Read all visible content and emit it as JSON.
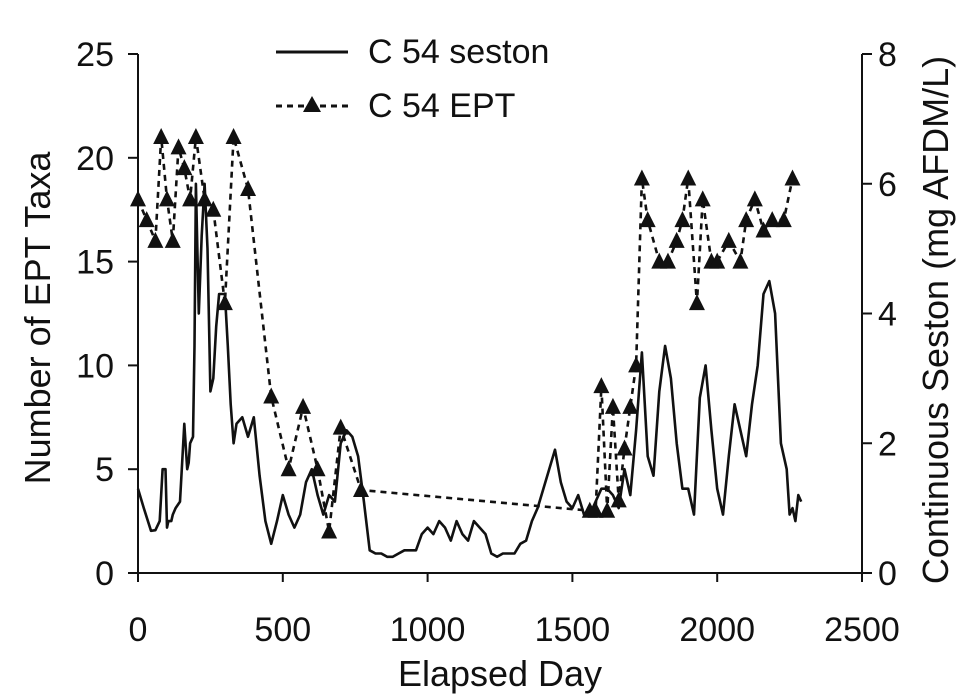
{
  "chart_data": {
    "type": "line",
    "xlabel": "Elapsed Day",
    "ylabel_left": "Number of EPT Taxa",
    "ylabel_right": "Continuous Seston (mg AFDM/L)",
    "xlim": [
      0,
      2500
    ],
    "ylim_left": [
      0,
      25
    ],
    "ylim_right": [
      0,
      8
    ],
    "x_ticks": [
      0,
      500,
      1000,
      1500,
      2000,
      2500
    ],
    "y_ticks_left": [
      0,
      5,
      10,
      15,
      20,
      25
    ],
    "y_ticks_right": [
      0,
      2,
      4,
      6,
      8
    ],
    "grid": false,
    "legend_position": "top-center",
    "series": [
      {
        "name": "C 54 seston",
        "axis": "right",
        "style": "solid",
        "marker": "none",
        "color": "#111111",
        "x": [
          0,
          20,
          45,
          60,
          75,
          85,
          95,
          100,
          105,
          115,
          120,
          130,
          145,
          160,
          170,
          175,
          180,
          190,
          195,
          200,
          210,
          220,
          230,
          240,
          250,
          260,
          270,
          280,
          300,
          310,
          320,
          330,
          340,
          360,
          380,
          400,
          420,
          440,
          460,
          480,
          500,
          520,
          540,
          560,
          580,
          600,
          620,
          640,
          660,
          680,
          700,
          720,
          740,
          760,
          780,
          800,
          820,
          840,
          860,
          880,
          900,
          920,
          940,
          960,
          980,
          1000,
          1020,
          1040,
          1060,
          1080,
          1100,
          1120,
          1140,
          1160,
          1180,
          1200,
          1220,
          1240,
          1260,
          1280,
          1300,
          1320,
          1340,
          1360,
          1380,
          1400,
          1420,
          1440,
          1460,
          1480,
          1500,
          1520,
          1540,
          1560,
          1580,
          1600,
          1620,
          1640,
          1660,
          1680,
          1700,
          1720,
          1740,
          1760,
          1780,
          1800,
          1820,
          1840,
          1860,
          1880,
          1900,
          1920,
          1940,
          1960,
          1980,
          2000,
          2020,
          2040,
          2060,
          2080,
          2100,
          2120,
          2140,
          2160,
          2180,
          2200,
          2220,
          2240,
          2250,
          2260,
          2270,
          2280,
          2290
        ],
        "y": [
          1.3,
          1.0,
          0.65,
          0.66,
          0.8,
          1.6,
          1.6,
          0.7,
          0.8,
          0.8,
          0.9,
          1.0,
          1.1,
          2.3,
          1.6,
          1.7,
          2.0,
          2.1,
          3.5,
          6.0,
          4.0,
          5.2,
          6.0,
          5.0,
          2.8,
          3.0,
          3.8,
          4.3,
          4.3,
          3.5,
          2.6,
          2.0,
          2.3,
          2.4,
          2.1,
          2.4,
          1.5,
          0.8,
          0.45,
          0.8,
          1.2,
          0.9,
          0.7,
          0.9,
          1.4,
          1.6,
          1.2,
          0.9,
          1.2,
          1.1,
          2.0,
          2.2,
          2.1,
          1.8,
          1.1,
          0.35,
          0.3,
          0.3,
          0.25,
          0.25,
          0.3,
          0.35,
          0.35,
          0.35,
          0.6,
          0.7,
          0.6,
          0.8,
          0.7,
          0.5,
          0.8,
          0.6,
          0.5,
          0.8,
          0.7,
          0.6,
          0.3,
          0.25,
          0.3,
          0.3,
          0.3,
          0.45,
          0.5,
          0.8,
          1.0,
          1.3,
          1.6,
          1.9,
          1.4,
          1.1,
          1.0,
          1.2,
          0.9,
          0.9,
          1.1,
          1.3,
          1.3,
          1.2,
          1.0,
          1.6,
          1.2,
          2.2,
          3.4,
          1.8,
          1.5,
          2.8,
          3.5,
          3.0,
          2.0,
          1.3,
          1.3,
          0.9,
          2.7,
          3.2,
          2.2,
          1.3,
          0.9,
          1.8,
          2.6,
          2.2,
          1.8,
          2.6,
          3.2,
          4.3,
          4.5,
          4.0,
          2.0,
          1.6,
          0.9,
          1.0,
          0.8,
          1.2,
          1.1
        ],
        "note": "seston plotted on right axis"
      },
      {
        "name": "C 54 EPT",
        "axis": "left",
        "style": "dashed",
        "marker": "triangle",
        "color": "#111111",
        "x": [
          0,
          30,
          60,
          80,
          100,
          120,
          140,
          160,
          180,
          200,
          230,
          260,
          300,
          330,
          380,
          460,
          520,
          570,
          620,
          660,
          700,
          770,
          1560,
          1580,
          1600,
          1620,
          1640,
          1660,
          1680,
          1700,
          1720,
          1740,
          1760,
          1800,
          1830,
          1860,
          1880,
          1900,
          1930,
          1950,
          1980,
          2000,
          2040,
          2080,
          2100,
          2130,
          2160,
          2190,
          2230,
          2260
        ],
        "y": [
          18,
          17,
          16,
          21,
          18,
          16,
          20.5,
          19.5,
          18,
          21,
          18,
          17.5,
          13,
          21,
          18.5,
          8.5,
          5,
          8,
          5,
          2,
          7,
          4,
          3,
          3,
          9,
          3,
          8,
          3.5,
          6,
          8,
          10,
          19,
          17,
          15,
          15,
          16,
          17,
          19,
          13,
          18,
          15,
          15,
          16,
          15,
          17,
          18,
          16.5,
          17,
          17,
          19
        ]
      }
    ]
  }
}
